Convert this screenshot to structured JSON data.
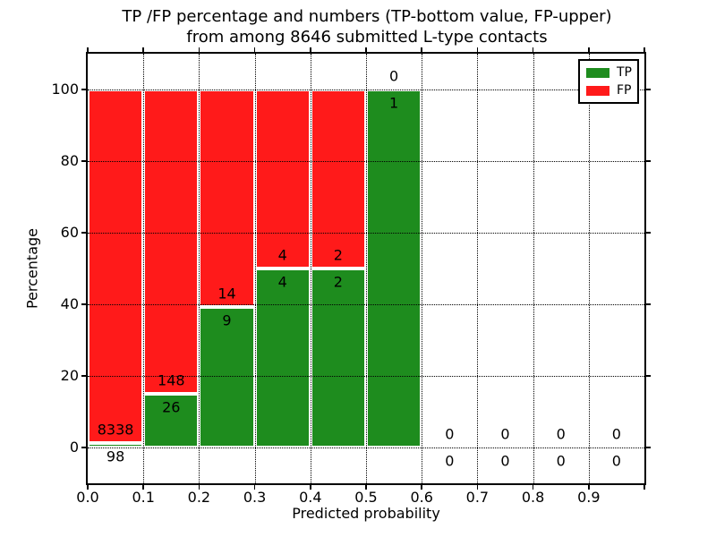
{
  "figure": {
    "title_line1": "TP /FP percentage and numbers (TP-bottom value, FP-upper)",
    "title_line2": "from among 8646 submitted L-type contacts"
  },
  "chart_data": {
    "type": "bar",
    "stacked": true,
    "title": "TP /FP percentage and numbers (TP-bottom value, FP-upper)\nfrom among 8646 submitted L-type contacts",
    "xlabel": "Predicted probability",
    "ylabel": "Percentage",
    "xlim": [
      0.0,
      1.0
    ],
    "ylim": [
      -10,
      110
    ],
    "grid": true,
    "colors": {
      "tp": "#1e8c1e",
      "fp": "#ff1a1a",
      "bar_edge": "#ffffff",
      "grid": "#000000"
    },
    "xticks": [
      {
        "value": 0.0,
        "label": "0.0"
      },
      {
        "value": 0.1,
        "label": "0.1"
      },
      {
        "value": 0.2,
        "label": "0.2"
      },
      {
        "value": 0.3,
        "label": "0.3"
      },
      {
        "value": 0.4,
        "label": "0.4"
      },
      {
        "value": 0.5,
        "label": "0.5"
      },
      {
        "value": 0.6,
        "label": "0.6"
      },
      {
        "value": 0.7,
        "label": "0.7"
      },
      {
        "value": 0.8,
        "label": "0.8"
      },
      {
        "value": 0.9,
        "label": "0.9"
      },
      {
        "value": 1.0,
        "label": ""
      }
    ],
    "yticks": [
      {
        "value": 0,
        "label": "0"
      },
      {
        "value": 20,
        "label": "20"
      },
      {
        "value": 40,
        "label": "40"
      },
      {
        "value": 60,
        "label": "60"
      },
      {
        "value": 80,
        "label": "80"
      },
      {
        "value": 100,
        "label": "100"
      }
    ],
    "legend": {
      "position": "upper right",
      "entries": [
        {
          "label": "TP",
          "color": "#1e8c1e"
        },
        {
          "label": "FP",
          "color": "#ff1a1a"
        }
      ]
    },
    "bins": [
      {
        "range": [
          0.0,
          0.1
        ],
        "tp_count": 98,
        "fp_count": 8338,
        "tp_pct": 1.16,
        "fp_pct": 98.84
      },
      {
        "range": [
          0.1,
          0.2
        ],
        "tp_count": 26,
        "fp_count": 148,
        "tp_pct": 14.94,
        "fp_pct": 85.06
      },
      {
        "range": [
          0.2,
          0.3
        ],
        "tp_count": 9,
        "fp_count": 14,
        "tp_pct": 39.13,
        "fp_pct": 60.87
      },
      {
        "range": [
          0.3,
          0.4
        ],
        "tp_count": 4,
        "fp_count": 4,
        "tp_pct": 50,
        "fp_pct": 50
      },
      {
        "range": [
          0.4,
          0.5
        ],
        "tp_count": 2,
        "fp_count": 2,
        "tp_pct": 50,
        "fp_pct": 50
      },
      {
        "range": [
          0.5,
          0.6
        ],
        "tp_count": 1,
        "fp_count": 0,
        "tp_pct": 100,
        "fp_pct": 0
      },
      {
        "range": [
          0.6,
          0.7
        ],
        "tp_count": 0,
        "fp_count": 0,
        "tp_pct": 0,
        "fp_pct": 0
      },
      {
        "range": [
          0.7,
          0.8
        ],
        "tp_count": 0,
        "fp_count": 0,
        "tp_pct": 0,
        "fp_pct": 0
      },
      {
        "range": [
          0.8,
          0.9
        ],
        "tp_count": 0,
        "fp_count": 0,
        "tp_pct": 0,
        "fp_pct": 0
      },
      {
        "range": [
          0.9,
          1.0
        ],
        "tp_count": 0,
        "fp_count": 0,
        "tp_pct": 0,
        "fp_pct": 0
      }
    ]
  }
}
